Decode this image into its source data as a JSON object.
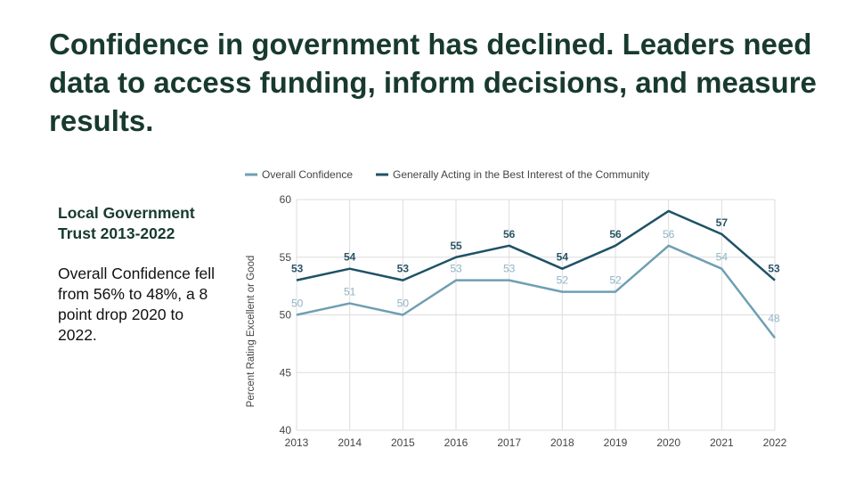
{
  "headline": "Confidence in government has declined. Leaders need data to access funding, inform decisions, and measure results.",
  "sidebar": {
    "title": "Local Government Trust 2013-2022",
    "body": "Overall Confidence fell from 56% to 48%, a 8 point drop 2020 to 2022."
  },
  "colors": {
    "series_a": "#6f9fb3",
    "series_b": "#1e5266",
    "grid": "#dddddd"
  },
  "chart_data": {
    "type": "line",
    "title": "",
    "xlabel": "",
    "ylabel": "Percent Rating Excellent or Good",
    "ylim": [
      40,
      60
    ],
    "yticks": [
      40,
      45,
      50,
      55,
      60
    ],
    "x": [
      "2013",
      "2014",
      "2015",
      "2016",
      "2017",
      "2018",
      "2019",
      "2020",
      "2021",
      "2022"
    ],
    "legend_position": "top",
    "series": [
      {
        "name": "Overall Confidence",
        "values": [
          50,
          51,
          50,
          53,
          53,
          52,
          52,
          56,
          54,
          48
        ]
      },
      {
        "name": "Generally Acting in the Best Interest of the Community",
        "values": [
          53,
          54,
          53,
          55,
          56,
          54,
          56,
          59,
          57,
          53
        ]
      }
    ],
    "data_labels": [
      [
        "50",
        "51",
        "50",
        "53",
        "53",
        "52",
        "52",
        "56",
        "54",
        "48"
      ],
      [
        "53",
        "54",
        "53",
        "55",
        "56",
        "54",
        "56",
        "",
        "57",
        "53"
      ]
    ]
  }
}
